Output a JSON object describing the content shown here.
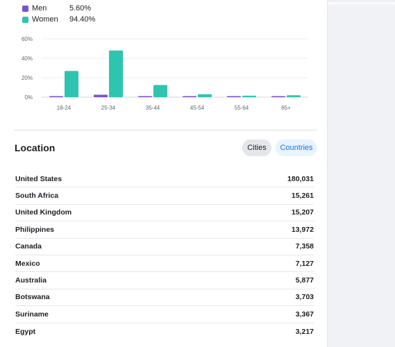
{
  "gender_legend": [
    {
      "label": "Men",
      "value": "5.60%",
      "color": "#7b4fd6"
    },
    {
      "label": "Women",
      "value": "94.40%",
      "color": "#2ec4b0"
    }
  ],
  "chart_data": {
    "type": "bar",
    "categories": [
      "18-24",
      "25-34",
      "35-44",
      "45-54",
      "55-64",
      "65+"
    ],
    "series": [
      {
        "name": "Men",
        "values": [
          1.0,
          2.5,
          0.8,
          0.3,
          0.3,
          0.4
        ]
      },
      {
        "name": "Women",
        "values": [
          27,
          48,
          12.5,
          3,
          1.5,
          2
        ]
      }
    ],
    "ylim": [
      0,
      60
    ],
    "yticks": [
      "0%",
      "20%",
      "40%",
      "60%"
    ],
    "grid": true
  },
  "location": {
    "title": "Location",
    "tabs": {
      "cities": "Cities",
      "countries": "Countries"
    },
    "rows": [
      {
        "country": "United States",
        "count": "180,031"
      },
      {
        "country": "South Africa",
        "count": "15,261"
      },
      {
        "country": "United Kingdom",
        "count": "15,207"
      },
      {
        "country": "Philippines",
        "count": "13,972"
      },
      {
        "country": "Canada",
        "count": "7,358"
      },
      {
        "country": "Mexico",
        "count": "7,127"
      },
      {
        "country": "Australia",
        "count": "5,877"
      },
      {
        "country": "Botswana",
        "count": "3,703"
      },
      {
        "country": "Suriname",
        "count": "3,367"
      },
      {
        "country": "Egypt",
        "count": "3,217"
      }
    ]
  }
}
